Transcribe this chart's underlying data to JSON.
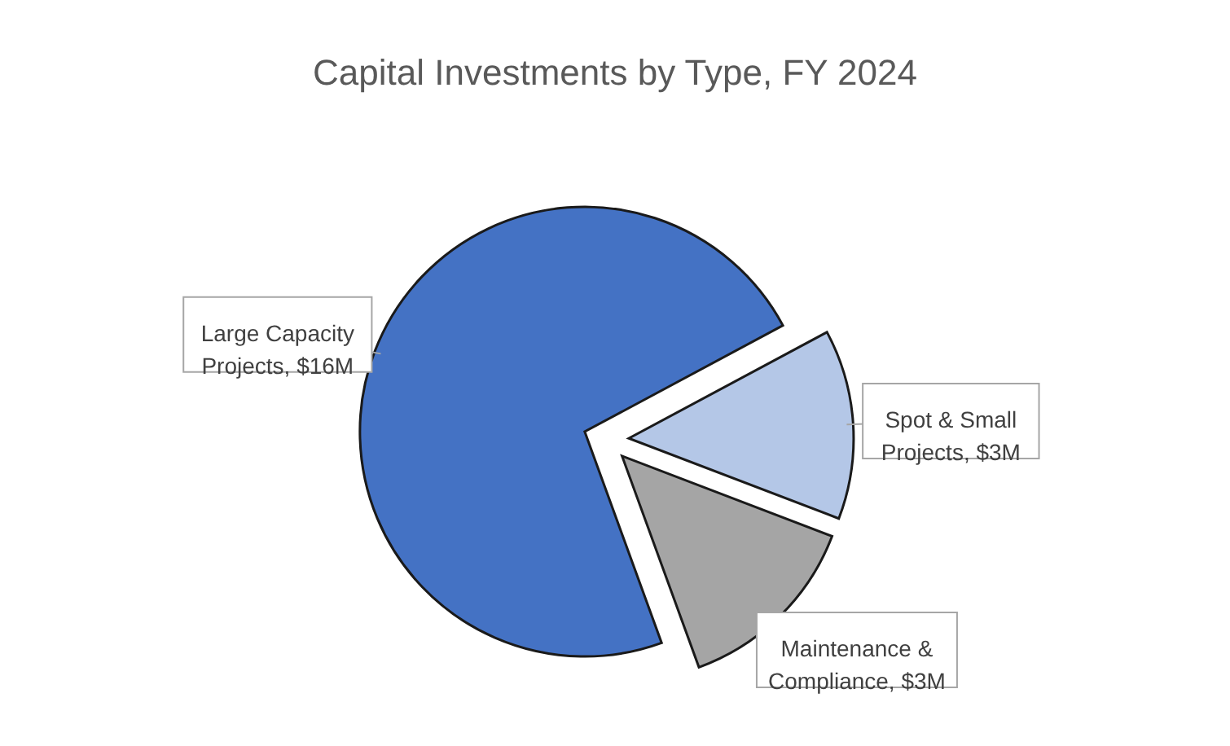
{
  "chart_data": {
    "type": "pie",
    "title": "Capital Investments by Type, FY 2024",
    "categories": [
      "Large Capacity Projects",
      "Spot & Small Projects",
      "Maintenance & Compliance"
    ],
    "values": [
      16,
      3,
      3
    ],
    "colors": [
      "#4472c4",
      "#b4c7e7",
      "#a5a5a5"
    ],
    "value_labels": [
      "$16M",
      "$3M",
      "$3M"
    ]
  }
}
